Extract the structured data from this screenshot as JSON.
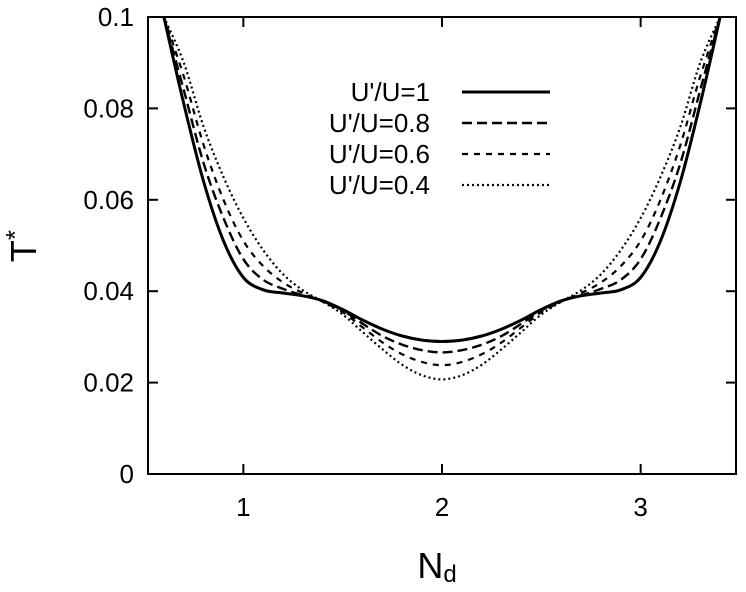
{
  "chart_data": {
    "type": "line",
    "title": "",
    "xlabel_main": "N",
    "xlabel_sub": "d",
    "ylabel_main": "T",
    "ylabel_sup": "*",
    "xlim": [
      0.52,
      3.48
    ],
    "ylim": [
      0,
      0.1
    ],
    "xticks": [
      1,
      2,
      3
    ],
    "xtick_labels": [
      "1",
      "2",
      "3"
    ],
    "yticks": [
      0,
      0.02,
      0.04,
      0.06,
      0.08,
      0.1
    ],
    "ytick_labels": [
      "0",
      "0.02",
      "0.04",
      "0.06",
      "0.08",
      "0.1"
    ],
    "grid": false,
    "legend_position": "top-center",
    "series": [
      {
        "name": "U'/U=1",
        "style": "solid",
        "x": [
          0.6,
          0.7,
          0.8,
          0.9,
          1.0,
          1.1,
          1.2,
          1.3,
          1.4,
          1.5,
          1.6,
          1.7,
          1.8,
          1.9,
          2.0
        ],
        "y": [
          0.1,
          0.081,
          0.064,
          0.051,
          0.043,
          0.0403,
          0.0396,
          0.039,
          0.0379,
          0.036,
          0.0337,
          0.0317,
          0.0302,
          0.0293,
          0.029
        ]
      },
      {
        "name": "U'/U=0.8",
        "style": "dashed",
        "x": [
          0.6,
          0.7,
          0.8,
          0.9,
          1.0,
          1.1,
          1.2,
          1.3,
          1.4,
          1.5,
          1.6,
          1.7,
          1.8,
          1.9,
          2.0
        ],
        "y": [
          0.1,
          0.084,
          0.068,
          0.056,
          0.047,
          0.0425,
          0.0405,
          0.0391,
          0.0378,
          0.0358,
          0.0329,
          0.0302,
          0.0283,
          0.0271,
          0.0266
        ]
      },
      {
        "name": "U'/U=0.6",
        "style": "dotted-dash",
        "x": [
          0.6,
          0.7,
          0.8,
          0.9,
          1.0,
          1.1,
          1.2,
          1.3,
          1.4,
          1.5,
          1.6,
          1.7,
          1.8,
          1.9,
          2.0
        ],
        "y": [
          0.1,
          0.087,
          0.072,
          0.06,
          0.051,
          0.0455,
          0.0419,
          0.0396,
          0.0377,
          0.0354,
          0.0321,
          0.0288,
          0.0262,
          0.0245,
          0.0238
        ]
      },
      {
        "name": "U'/U=0.4",
        "style": "dotted",
        "x": [
          0.6,
          0.7,
          0.8,
          0.9,
          1.0,
          1.1,
          1.2,
          1.3,
          1.4,
          1.5,
          1.6,
          1.7,
          1.8,
          1.9,
          2.0
        ],
        "y": [
          0.1,
          0.09,
          0.076,
          0.065,
          0.056,
          0.049,
          0.0437,
          0.0402,
          0.0377,
          0.0349,
          0.0311,
          0.0273,
          0.0239,
          0.0216,
          0.0207
        ]
      }
    ],
    "symmetry_note_x": 2.0
  }
}
